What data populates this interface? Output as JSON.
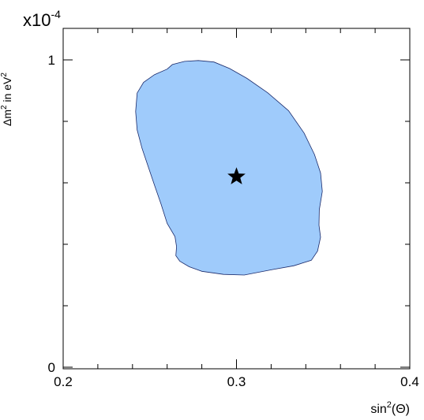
{
  "chart_data": {
    "type": "area",
    "title": "",
    "xlabel": "sin",
    "xlabel_exp": "2",
    "xlabel_suffix": "(Θ)",
    "ylabel": "Δm",
    "ylabel_exp": "2",
    "ylabel_mid": " in eV",
    "ylabel_exp2": "2",
    "y_multiplier_base": "x10",
    "y_multiplier_exp": "-4",
    "xlim": [
      0.2,
      0.4
    ],
    "ylim": [
      0,
      1
    ],
    "x_ticks": [
      {
        "value": 0.2,
        "label": "0.2"
      },
      {
        "value": 0.3,
        "label": "0.3"
      },
      {
        "value": 0.4,
        "label": "0.4"
      }
    ],
    "y_ticks": [
      {
        "value": 0,
        "label": "0"
      },
      {
        "value": 1,
        "label": "1"
      }
    ],
    "grid": false,
    "region": {
      "fill": "#9fcbfb",
      "stroke": "#1a2a6b",
      "points": [
        [
          0.26,
          0.97
        ],
        [
          0.263,
          0.985
        ],
        [
          0.27,
          0.995
        ],
        [
          0.278,
          0.998
        ],
        [
          0.287,
          0.993
        ],
        [
          0.296,
          0.972
        ],
        [
          0.306,
          0.94
        ],
        [
          0.318,
          0.893
        ],
        [
          0.33,
          0.835
        ],
        [
          0.339,
          0.762
        ],
        [
          0.345,
          0.692
        ],
        [
          0.3485,
          0.632
        ],
        [
          0.3495,
          0.572
        ],
        [
          0.3478,
          0.512
        ],
        [
          0.3476,
          0.462
        ],
        [
          0.3485,
          0.423
        ],
        [
          0.3468,
          0.378
        ],
        [
          0.3432,
          0.348
        ],
        [
          0.333,
          0.33
        ],
        [
          0.321,
          0.318
        ],
        [
          0.3045,
          0.3
        ],
        [
          0.2925,
          0.302
        ],
        [
          0.28,
          0.312
        ],
        [
          0.2727,
          0.327
        ],
        [
          0.2673,
          0.345
        ],
        [
          0.265,
          0.363
        ],
        [
          0.2654,
          0.392
        ],
        [
          0.2645,
          0.425
        ],
        [
          0.26,
          0.468
        ],
        [
          0.2564,
          0.532
        ],
        [
          0.2527,
          0.592
        ],
        [
          0.2491,
          0.652
        ],
        [
          0.2455,
          0.712
        ],
        [
          0.2427,
          0.772
        ],
        [
          0.2418,
          0.832
        ],
        [
          0.2427,
          0.892
        ],
        [
          0.2464,
          0.927
        ],
        [
          0.2527,
          0.952
        ],
        [
          0.26,
          0.97
        ]
      ]
    },
    "best_fit": {
      "x": 0.3,
      "y": 0.62,
      "marker": "star"
    }
  }
}
